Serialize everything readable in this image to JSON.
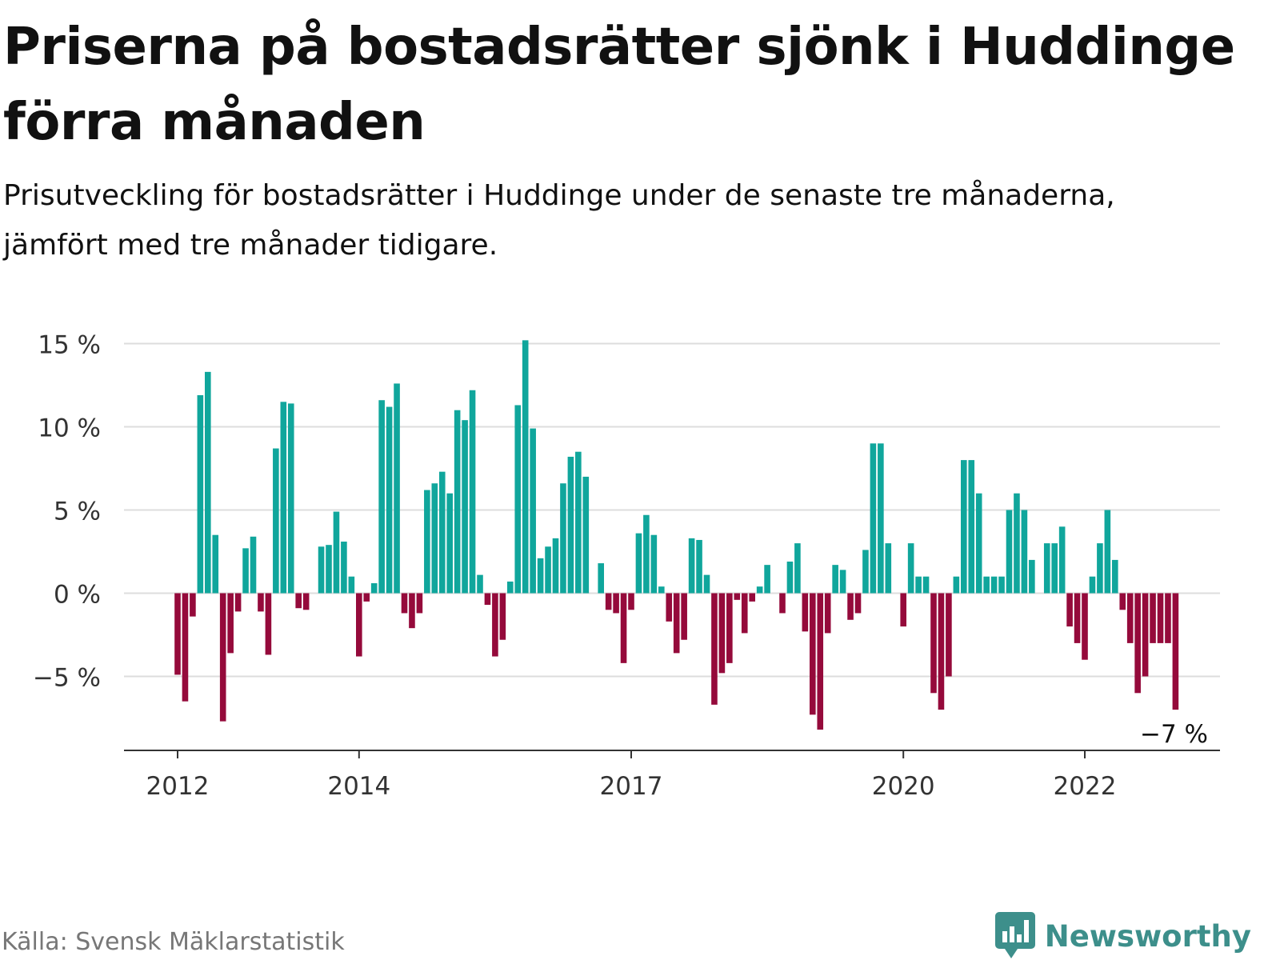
{
  "title": "Priserna på bostadsrätter sjönk i Huddinge förra månaden",
  "subtitle": "Prisutveckling för bostadsrätter i Huddinge under de senaste tre månaderna, jämfört med tre månader tidigare.",
  "source": "Källa: Svensk Mäklarstatistik",
  "brand": "Newsworthy",
  "colors": {
    "positive": "#10a69c",
    "negative": "#950a3b",
    "grid": "#dddddd",
    "axis": "#333333",
    "text": "#333333",
    "brand": "#3d8f8b"
  },
  "chart_data": {
    "type": "bar",
    "start": "2012-01",
    "last_label": "−7 %",
    "ylim": [
      -9.5,
      15.5
    ],
    "yticks": [
      15,
      10,
      5,
      0,
      -5
    ],
    "yticklabels": [
      "15 %",
      "10 %",
      "5 %",
      "0 %",
      "−5 %"
    ],
    "xticks": [
      {
        "label": "2012",
        "month": 0
      },
      {
        "label": "2014",
        "month": 24
      },
      {
        "label": "2017",
        "month": 60
      },
      {
        "label": "2020",
        "month": 96
      },
      {
        "label": "2022",
        "month": 120
      }
    ],
    "values": [
      -4.9,
      -6.5,
      -1.4,
      11.9,
      13.3,
      3.5,
      -7.7,
      -3.6,
      -1.1,
      2.7,
      3.4,
      -1.1,
      -3.7,
      8.7,
      11.5,
      11.4,
      -0.9,
      -1.0,
      null,
      2.8,
      2.9,
      4.9,
      3.1,
      1.0,
      -3.8,
      -0.5,
      0.6,
      11.6,
      11.2,
      12.6,
      -1.2,
      -2.1,
      -1.2,
      6.2,
      6.6,
      7.3,
      6.0,
      11.0,
      10.4,
      12.2,
      1.1,
      -0.7,
      -3.8,
      -2.8,
      0.7,
      11.3,
      15.2,
      9.9,
      2.1,
      2.8,
      3.3,
      6.6,
      8.2,
      8.5,
      7.0,
      null,
      1.8,
      -1.0,
      -1.2,
      -4.2,
      -1.0,
      3.6,
      4.7,
      3.5,
      0.4,
      -1.7,
      -3.6,
      -2.8,
      3.3,
      3.2,
      1.1,
      -6.7,
      -4.8,
      -4.2,
      -0.4,
      -2.4,
      -0.5,
      0.4,
      1.7,
      null,
      -1.2,
      1.9,
      3.0,
      -2.3,
      -7.3,
      -8.2,
      -2.4,
      1.7,
      1.4,
      -1.6,
      -1.2,
      2.6,
      9.0,
      9.0,
      3.0,
      null,
      -2.0,
      3.0,
      1.0,
      1.0,
      -6.0,
      -7.0,
      -5.0,
      1.0,
      8.0,
      8.0,
      6.0,
      1.0,
      1.0,
      1.0,
      5.0,
      6.0,
      5.0,
      2.0,
      null,
      3.0,
      3.0,
      4.0,
      -2.0,
      -3.0,
      -4.0,
      1.0,
      3.0,
      5.0,
      2.0,
      -1.0,
      -3.0,
      -6.0,
      -5.0,
      -3.0,
      -3.0,
      -3.0,
      -7.0
    ]
  }
}
